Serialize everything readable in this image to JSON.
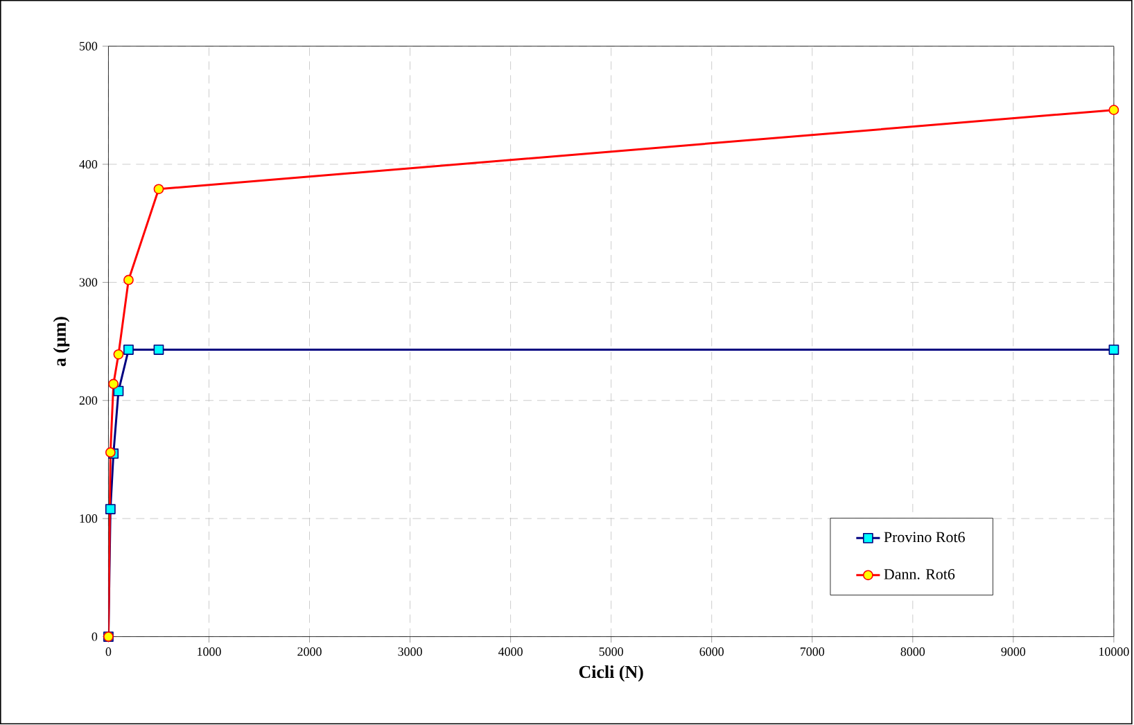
{
  "chart_data": {
    "type": "line",
    "xlabel": "Cicli (N)",
    "ylabel": "a (μm)",
    "x": [
      0,
      20,
      50,
      100,
      200,
      500,
      10000
    ],
    "series": [
      {
        "name": "Provino Rot6",
        "color": "#000080",
        "marker": "square",
        "values": [
          0,
          108,
          155,
          208,
          243,
          243,
          243
        ]
      },
      {
        "name": "Dann. Rot6",
        "color": "#ff0000",
        "marker": "circle",
        "values": [
          0,
          156,
          214,
          239,
          302,
          379,
          446
        ]
      }
    ],
    "xlim": [
      0,
      10000
    ],
    "ylim": [
      0,
      500
    ],
    "xticks": [
      0,
      1000,
      2000,
      3000,
      4000,
      5000,
      6000,
      7000,
      8000,
      9000,
      10000
    ],
    "yticks": [
      0,
      100,
      200,
      300,
      400,
      500
    ],
    "grid": true,
    "legend": "bottom right",
    "line_style": "solid"
  }
}
